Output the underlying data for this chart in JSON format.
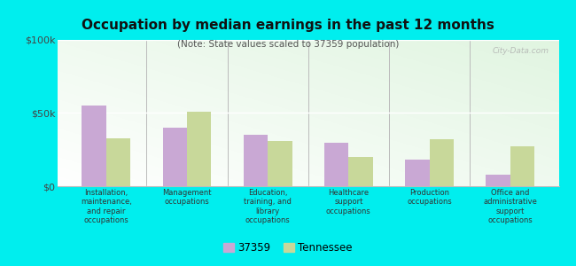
{
  "title": "Occupation by median earnings in the past 12 months",
  "subtitle": "(Note: State values scaled to 37359 population)",
  "categories": [
    "Installation,\nmaintenance,\nand repair\noccupations",
    "Management\noccupations",
    "Education,\ntraining, and\nlibrary\noccupations",
    "Healthcare\nsupport\noccupations",
    "Production\noccupations",
    "Office and\nadministrative\nsupport\noccupations"
  ],
  "values_37359": [
    55000,
    40000,
    35000,
    30000,
    18000,
    8000
  ],
  "values_tennessee": [
    33000,
    51000,
    31000,
    20000,
    32000,
    27000
  ],
  "bar_color_37359": "#c9a8d4",
  "bar_color_tennessee": "#c8d89a",
  "background_color": "#00eeee",
  "ylim": [
    0,
    100000
  ],
  "yticks": [
    0,
    50000,
    100000
  ],
  "ytick_labels": [
    "$0",
    "$50k",
    "$100k"
  ],
  "legend_label_37359": "37359",
  "legend_label_tennessee": "Tennessee",
  "watermark": "City-Data.com"
}
